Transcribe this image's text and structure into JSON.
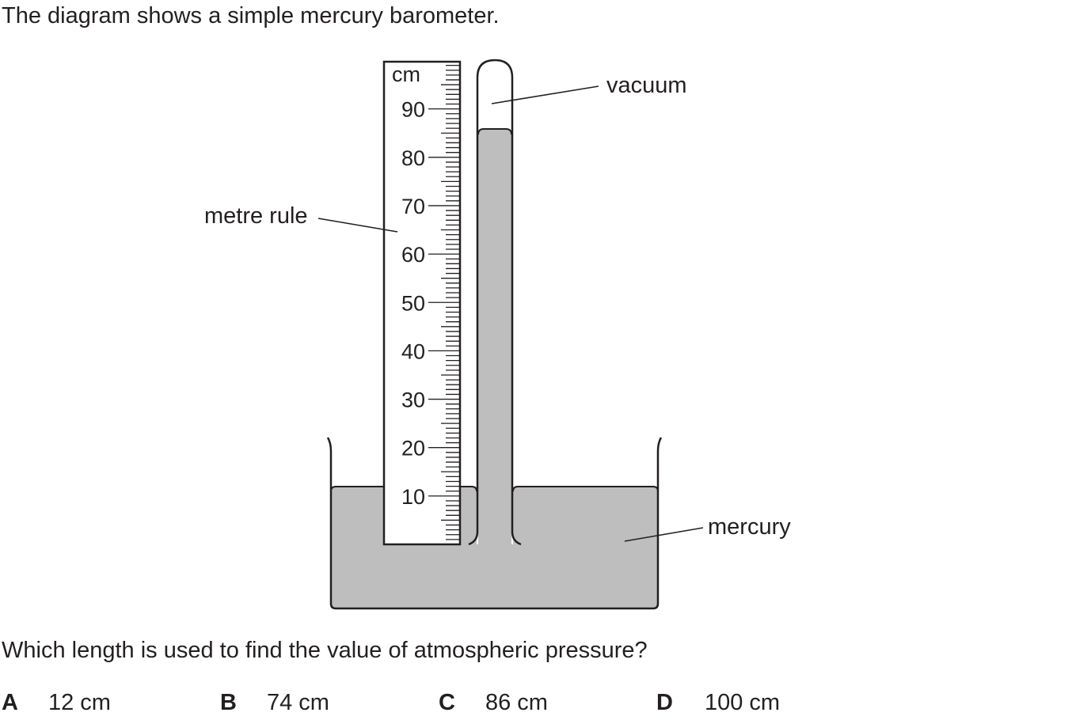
{
  "intro_text": "The diagram shows a simple mercury barometer.",
  "diagram": {
    "ruler_unit": "cm",
    "ruler_ticks": [
      "10",
      "20",
      "30",
      "40",
      "50",
      "60",
      "70",
      "80",
      "90"
    ],
    "labels": {
      "vacuum": "vacuum",
      "metre_rule": "metre rule",
      "mercury": "mercury"
    },
    "colors": {
      "mercury": "#bebebe",
      "outline": "#231f20"
    }
  },
  "question": "Which length is used to find the value of atmospheric pressure?",
  "options": [
    {
      "letter": "A",
      "value": "12 cm"
    },
    {
      "letter": "B",
      "value": "74 cm"
    },
    {
      "letter": "C",
      "value": "86 cm"
    },
    {
      "letter": "D",
      "value": "100 cm"
    }
  ]
}
